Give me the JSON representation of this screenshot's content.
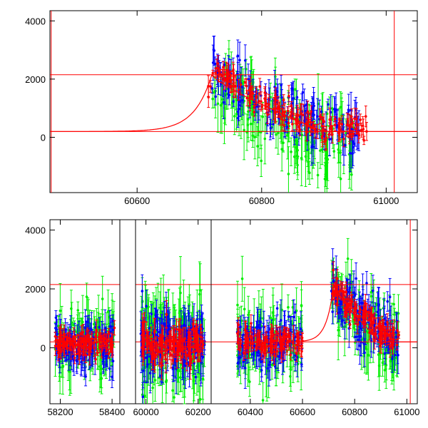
{
  "chart_data": [
    {
      "type": "scatter",
      "panel": "top",
      "xlim": [
        60460,
        61050
      ],
      "ylim": [
        -1900,
        4350
      ],
      "x_ticks": [
        60600,
        60800,
        61000
      ],
      "x_tick_labels": [
        "60600",
        "60800",
        "61000"
      ],
      "y_ticks": [
        0,
        2000,
        4000
      ],
      "y_tick_labels": [
        "0",
        "2000",
        "4000"
      ],
      "grid": false,
      "reference_lines": {
        "horizontal": [
          200,
          2150
        ],
        "vertical": [
          60462,
          61013
        ],
        "color": "#ff0000"
      },
      "model_curve": {
        "color": "#ff0000",
        "baseline": 200,
        "peak": 2150,
        "rise_start": 60640,
        "rise_peak": 60720,
        "decay_end": 60900,
        "x_end": 61050
      },
      "series": [
        {
          "color": "#00ee00",
          "x_range": [
            60720,
            60950
          ],
          "trend": [
            [
              60720,
              2000
            ],
            [
              60800,
              700
            ],
            [
              60900,
              -300
            ],
            [
              60950,
              200
            ]
          ],
          "scatter": 900
        },
        {
          "color": "#0000ff",
          "x_range": [
            60720,
            60960
          ],
          "trend": [
            [
              60720,
              2200
            ],
            [
              60800,
              1200
            ],
            [
              60900,
              400
            ],
            [
              60960,
              300
            ]
          ],
          "scatter": 600
        },
        {
          "color": "#ff0000",
          "x_range": [
            60710,
            60970
          ],
          "trend": [
            [
              60710,
              1800
            ],
            [
              60730,
              2250
            ],
            [
              60800,
              1200
            ],
            [
              60900,
              300
            ],
            [
              60970,
              250
            ]
          ],
          "scatter": 350
        }
      ]
    },
    {
      "type": "scatter",
      "panel": "bottom",
      "segments": [
        {
          "xlim": [
            58160,
            58430
          ],
          "x_ticks": [
            58200,
            58400
          ],
          "x_tick_labels": [
            "58200",
            "58400"
          ],
          "data_range": [
            58180,
            58410
          ]
        },
        {
          "xlim": [
            59960,
            60250
          ],
          "x_ticks": [
            60000,
            60200
          ],
          "x_tick_labels": [
            "60000",
            "60200"
          ],
          "data_range": [
            59980,
            60225
          ]
        },
        {
          "xlim": [
            60250,
            61040
          ],
          "x_ticks": [
            60400,
            60600,
            60800,
            61000
          ],
          "x_tick_labels": [
            "60400",
            "60600",
            "60800",
            "61000"
          ],
          "data_range": [
            60350,
            60970
          ]
        }
      ],
      "ylim": [
        -1900,
        4350
      ],
      "y_ticks": [
        0,
        2000,
        4000
      ],
      "y_tick_labels": [
        "0",
        "2000",
        "4000"
      ],
      "grid": false,
      "reference_lines": {
        "horizontal": [
          200,
          2150
        ],
        "vertical": [
          61013
        ],
        "color": "#ff0000"
      },
      "model_curve": {
        "color": "#ff0000",
        "baseline": 200,
        "peak": 2150,
        "rise_start": 60640,
        "rise_peak": 60720,
        "decay_end": 60900,
        "x_end": 61040
      },
      "series": [
        {
          "color": "#00ee00",
          "scatter": 900
        },
        {
          "color": "#0000ff",
          "scatter": 650
        },
        {
          "color": "#ff0000",
          "scatter": 350
        }
      ],
      "flare": {
        "x_range": [
          60710,
          60970
        ],
        "peak": 2150,
        "end": 250
      }
    }
  ]
}
